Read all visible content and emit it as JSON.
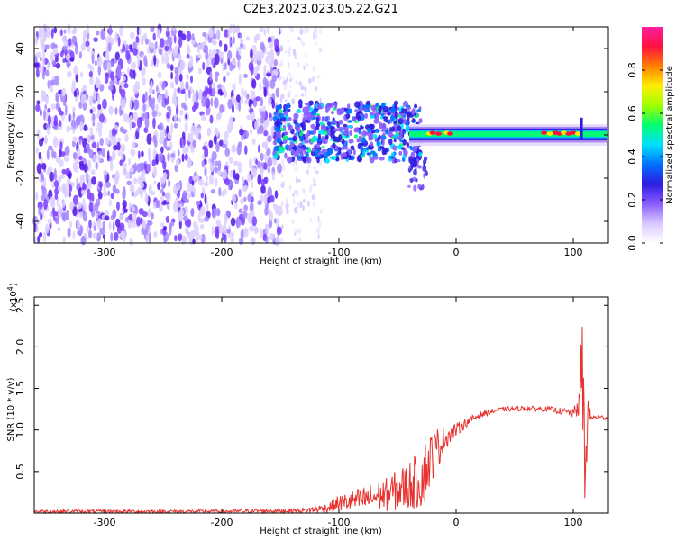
{
  "title": "C2E3.2023.023.05.22.G21",
  "chart_data": [
    {
      "type": "heatmap",
      "xlabel": "Height of straight line (km)",
      "ylabel": "Frequency (Hz)",
      "xlim": [
        -360,
        130
      ],
      "ylim": [
        -50,
        50
      ],
      "x_ticks": [
        -300,
        -200,
        -100,
        0,
        100
      ],
      "y_ticks": [
        -40,
        -20,
        0,
        20,
        40
      ],
      "colorbar": {
        "label": "Normalized spectral amplitude",
        "range": [
          0,
          1
        ],
        "ticks": [
          "0.0",
          "0.2",
          "0.4",
          "0.6",
          "0.8"
        ],
        "tick_values": [
          0.0,
          0.2,
          0.4,
          0.6,
          0.8
        ],
        "colors": [
          "#ffffff",
          "#d8c8ff",
          "#8a5cff",
          "#2d1be0",
          "#0070ff",
          "#00e0ff",
          "#00ff70",
          "#a0ff00",
          "#ffee00",
          "#ff8000",
          "#ff1040",
          "#ff20a0"
        ]
      },
      "regions": [
        {
          "name": "noise",
          "x_range": [
            -360,
            -150
          ],
          "freq_range": [
            -50,
            50
          ],
          "amplitude": 0.15
        },
        {
          "name": "noise-fade",
          "x_range": [
            -150,
            -115
          ],
          "freq_range": [
            -50,
            50
          ],
          "amplitude": 0.05
        },
        {
          "name": "scattered-signal",
          "x_range": [
            -155,
            -30
          ],
          "freq_range": [
            -12,
            15
          ],
          "amplitude": 0.35
        },
        {
          "name": "signal-tail",
          "x_range": [
            -40,
            -25
          ],
          "freq_range": [
            -25,
            -10
          ],
          "amplitude": 0.2
        },
        {
          "name": "carrier",
          "x_range": [
            -40,
            130
          ],
          "freq_range": [
            -3,
            4
          ],
          "amplitude": 0.6
        },
        {
          "name": "carrier-peaks",
          "x_range": [
            -25,
            110
          ],
          "freq_range": [
            -1,
            2
          ],
          "amplitude": 0.9
        }
      ]
    },
    {
      "type": "line",
      "xlabel": "Height of straight line (km)",
      "ylabel": "SNR (10 * v/v)",
      "y_multiplier": "(x10^4)",
      "y_multiplier_base": "(x10",
      "y_multiplier_exp": "4",
      "y_multiplier_close": ")",
      "xlim": [
        -360,
        130
      ],
      "ylim": [
        0,
        2.6
      ],
      "x_ticks": [
        -300,
        -200,
        -100,
        0,
        100
      ],
      "y_ticks": [
        0.5,
        1.0,
        1.5,
        2.0,
        2.5
      ],
      "y_tick_labels": [
        "0.5",
        "1.0",
        "1.5",
        "2.0",
        "2.5"
      ],
      "color": "#e8322f",
      "x": [
        -360,
        -200,
        -130,
        -110,
        -100,
        -80,
        -60,
        -45,
        -30,
        -25,
        -20,
        -15,
        -10,
        0,
        10,
        20,
        30,
        40,
        60,
        80,
        100,
        105,
        108,
        110,
        112,
        115,
        130
      ],
      "y": [
        0.02,
        0.02,
        0.03,
        0.06,
        0.12,
        0.16,
        0.22,
        0.3,
        0.4,
        0.55,
        0.7,
        0.8,
        0.9,
        1.0,
        1.1,
        1.18,
        1.22,
        1.25,
        1.26,
        1.25,
        1.2,
        1.3,
        1.8,
        0.3,
        1.2,
        1.15,
        1.15
      ],
      "noise_amp": [
        0.02,
        0.02,
        0.03,
        0.06,
        0.1,
        0.15,
        0.2,
        0.28,
        0.35,
        0.4,
        0.3,
        0.25,
        0.15,
        0.08,
        0.05,
        0.04,
        0.03,
        0.03,
        0.03,
        0.03,
        0.05,
        0.15,
        0.8,
        0.7,
        0.3,
        0.03,
        0.03
      ]
    }
  ]
}
